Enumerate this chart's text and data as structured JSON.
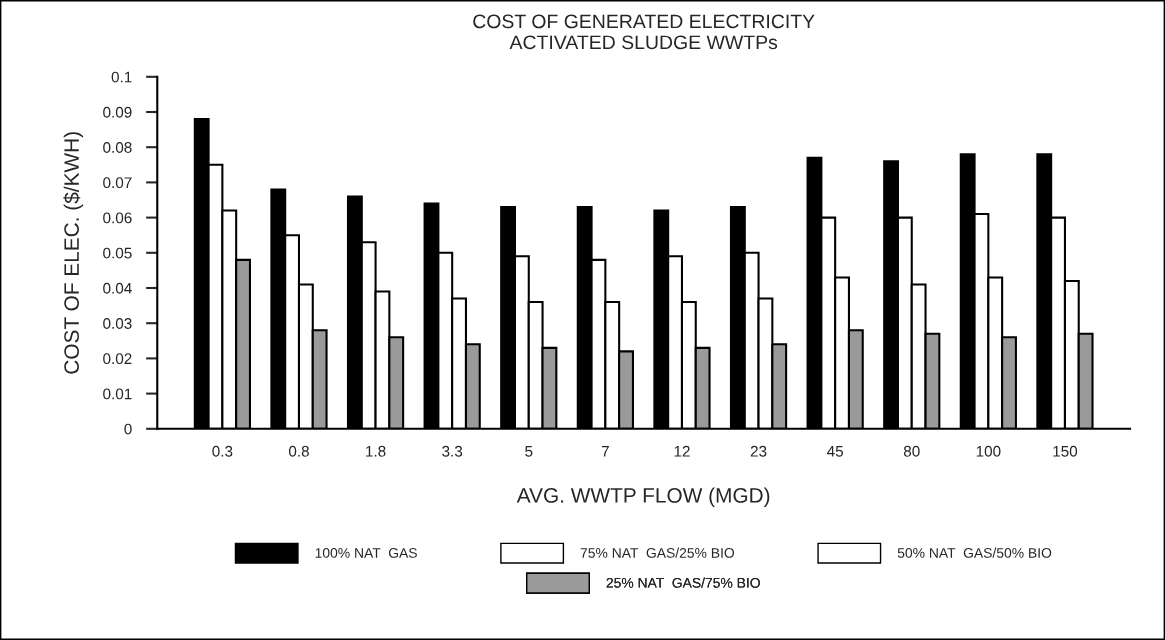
{
  "chart_data": {
    "type": "bar",
    "title": "COST OF GENERATED ELECTRICITY\nACTIVATED SLUDGE WWTPs",
    "xlabel": "AVG. WWTP FLOW (MGD)",
    "ylabel": "COST OF ELEC. ($/KWH)",
    "categories": [
      "0.3",
      "0.8",
      "1.8",
      "3.3",
      "5",
      "7",
      "12",
      "23",
      "45",
      "80",
      "100",
      "150"
    ],
    "series": [
      {
        "name": "100% NAT  GAS",
        "color": "#000000",
        "values": [
          0.088,
          0.068,
          0.066,
          0.064,
          0.063,
          0.063,
          0.062,
          0.063,
          0.077,
          0.076,
          0.078,
          0.078
        ]
      },
      {
        "name": "75% NAT  GAS/25% BIO",
        "color": "#ffffff",
        "values": [
          0.075,
          0.055,
          0.053,
          0.05,
          0.049,
          0.048,
          0.049,
          0.05,
          0.06,
          0.06,
          0.061,
          0.06
        ]
      },
      {
        "name": "50% NAT  GAS/50% BIO",
        "color": "#ffffff",
        "values": [
          0.062,
          0.041,
          0.039,
          0.037,
          0.036,
          0.036,
          0.036,
          0.037,
          0.043,
          0.041,
          0.043,
          0.042
        ]
      },
      {
        "name": "25% NAT  GAS/75% BIO",
        "color": "#9a9a9a",
        "values": [
          0.048,
          0.028,
          0.026,
          0.024,
          0.023,
          0.022,
          0.023,
          0.024,
          0.028,
          0.027,
          0.026,
          0.027
        ]
      }
    ],
    "ylim": [
      0,
      0.1
    ],
    "yticks": [
      0,
      0.01,
      0.02,
      0.03,
      0.04,
      0.05,
      0.06,
      0.07,
      0.08,
      0.09,
      0.1
    ],
    "grid": false,
    "legend": "bottom"
  }
}
